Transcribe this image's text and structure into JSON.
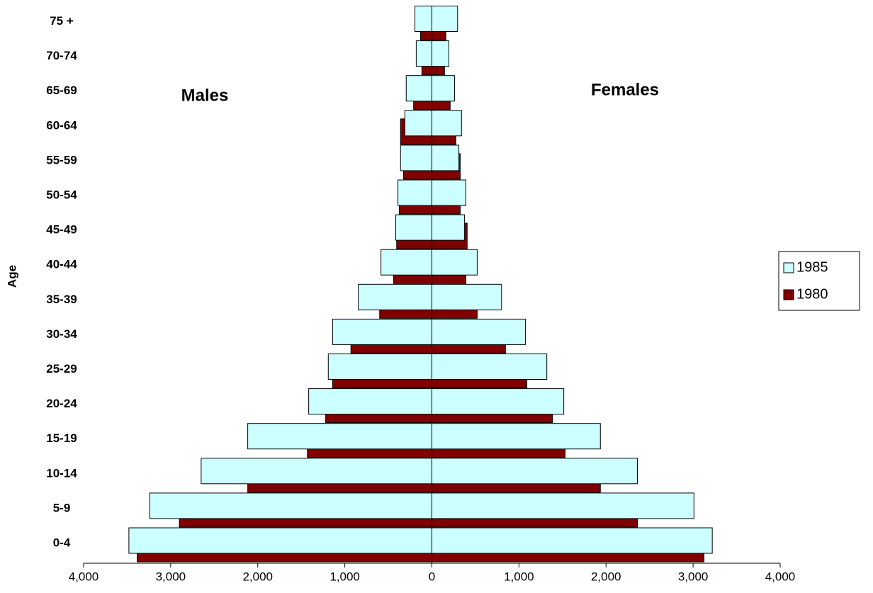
{
  "chart_data": {
    "type": "pyramid",
    "y_label": "Age",
    "left_label": "Males",
    "right_label": "Females",
    "categories": [
      "0-4",
      "5-9",
      "10-14",
      "15-19",
      "20-24",
      "25-29",
      "30-34",
      "35-39",
      "40-44",
      "45-49",
      "50-54",
      "55-59",
      "60-64",
      "65-69",
      "70-74",
      "75 +"
    ],
    "series": [
      {
        "name": "1980",
        "color": "#800000",
        "males": [
          3385,
          2900,
          2115,
          1430,
          1220,
          1140,
          930,
          600,
          440,
          405,
          375,
          325,
          360,
          210,
          115,
          130
        ],
        "females": [
          3125,
          2360,
          1935,
          1530,
          1385,
          1090,
          845,
          520,
          390,
          405,
          325,
          325,
          275,
          210,
          145,
          160
        ]
      },
      {
        "name": "1985",
        "color": "#ccffff",
        "males": [
          3480,
          3240,
          2650,
          2115,
          1415,
          1190,
          1140,
          845,
          585,
          415,
          390,
          360,
          310,
          295,
          180,
          195
        ],
        "females": [
          3220,
          3010,
          2360,
          1935,
          1515,
          1320,
          1075,
          800,
          520,
          375,
          390,
          310,
          340,
          260,
          195,
          295
        ]
      }
    ],
    "xlim": [
      -4000,
      4000
    ],
    "xticks": [
      {
        "value": -4000,
        "label": "4,000"
      },
      {
        "value": -3000,
        "label": "3,000"
      },
      {
        "value": -2000,
        "label": "2,000"
      },
      {
        "value": -1000,
        "label": "1,000"
      },
      0,
      {
        "value": 1000,
        "label": "1,000"
      },
      {
        "value": 2000,
        "label": "2,000"
      },
      {
        "value": 3000,
        "label": "3,000"
      },
      {
        "value": 4000,
        "label": "4,000"
      }
    ],
    "legend": "right"
  }
}
